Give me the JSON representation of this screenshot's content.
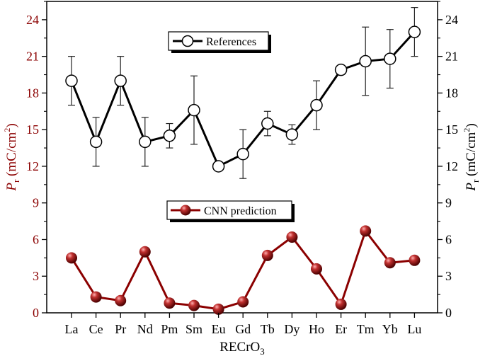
{
  "chart_data": {
    "type": "line",
    "categories": [
      "La",
      "Ce",
      "Pr",
      "Nd",
      "Pm",
      "Sm",
      "Eu",
      "Gd",
      "Tb",
      "Dy",
      "Ho",
      "Er",
      "Tm",
      "Yb",
      "Lu"
    ],
    "xlabel_main": "RECrO",
    "xlabel_sub": "3",
    "ylabel_left": {
      "symbol": "P",
      "sub": "r",
      "unit": " (mC/cm",
      "sup": "2",
      "close": ")"
    },
    "ylabel_right": {
      "symbol": "P",
      "sub": "r",
      "unit": " (mC/cm",
      "sup": "2",
      "close": ")"
    },
    "ylim": [
      0,
      25.5
    ],
    "yticks": [
      0,
      3,
      6,
      9,
      12,
      15,
      18,
      21,
      24
    ],
    "grid": false,
    "series": [
      {
        "name": "References",
        "color": "#000000",
        "marker": "open-circle",
        "values": [
          19.0,
          14.0,
          19.0,
          14.0,
          14.5,
          16.6,
          12.0,
          13.0,
          15.5,
          14.6,
          17.0,
          19.9,
          20.6,
          20.8,
          23.0
        ],
        "err_low": [
          17.0,
          12.0,
          17.0,
          12.0,
          13.5,
          13.8,
          12.0,
          11.0,
          14.5,
          13.8,
          15.0,
          19.6,
          17.8,
          18.4,
          21.0
        ],
        "err_high": [
          21.0,
          16.0,
          21.0,
          16.0,
          15.5,
          19.4,
          12.0,
          15.0,
          16.5,
          15.4,
          19.0,
          20.2,
          23.4,
          23.2,
          25.0
        ]
      },
      {
        "name": "CNN prediction",
        "color": "#8b0000",
        "marker": "filled-sphere",
        "values": [
          4.5,
          1.3,
          1.0,
          5.0,
          0.8,
          0.6,
          0.3,
          0.9,
          4.7,
          6.2,
          3.6,
          0.7,
          6.7,
          4.1,
          4.3
        ]
      }
    ],
    "legend": [
      {
        "label": "References",
        "placement": "top-center"
      },
      {
        "label": "CNN prediction",
        "placement": "middle-center"
      }
    ],
    "colors": {
      "axis_left": "#8b0000",
      "axis_right": "#000000"
    }
  }
}
